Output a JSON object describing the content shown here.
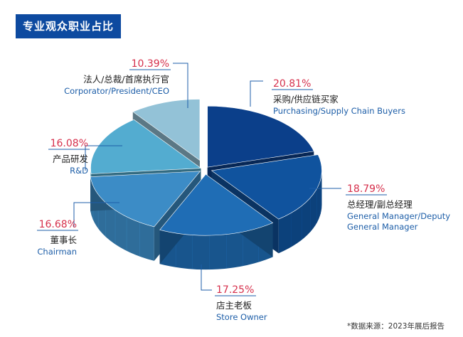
{
  "header": {
    "title": "专业观众职业占比"
  },
  "source_note": "*数据来源：2023年展后报告",
  "chart_data": {
    "type": "pie",
    "style": "3d-exploded",
    "slices": [
      {
        "key": "purchasing",
        "pct_label": "20.81%",
        "value": 20.81,
        "cn": "采购/供应链买家",
        "en": [
          "Purchasing/Supply Chain Buyers"
        ],
        "color": "#0b3f8a"
      },
      {
        "key": "gm",
        "pct_label": "18.79%",
        "value": 18.79,
        "cn": "总经理/副总经理",
        "en": [
          "General Manager/Deputy",
          "General Manager"
        ],
        "color": "#10539e"
      },
      {
        "key": "store-owner",
        "pct_label": "17.25%",
        "value": 17.25,
        "cn": "店主老板",
        "en": [
          "Store Owner"
        ],
        "color": "#1f6db5"
      },
      {
        "key": "chairman",
        "pct_label": "16.68%",
        "value": 16.68,
        "cn": "董事长",
        "en": [
          "Chairman"
        ],
        "color": "#3c8cc6"
      },
      {
        "key": "rd",
        "pct_label": "16.08%",
        "value": 16.08,
        "cn": "产品研发",
        "en": [
          "R&D"
        ],
        "color": "#53acd0"
      },
      {
        "key": "ceo",
        "pct_label": "10.39%",
        "value": 10.39,
        "cn": "法人/总裁/首席执行官",
        "en": [
          "Corporator/President/CEO"
        ],
        "color": "#93c2d7"
      }
    ]
  }
}
